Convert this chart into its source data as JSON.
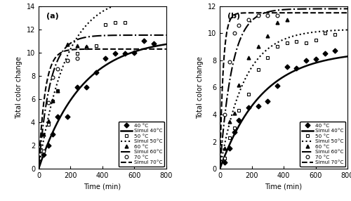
{
  "panel_a": {
    "title": "(a)",
    "ylabel": "Total color change",
    "xlabel": "Time (min)",
    "xlim": [
      0,
      800
    ],
    "ylim": [
      0,
      14
    ],
    "yticks": [
      0,
      2,
      4,
      6,
      8,
      10,
      12,
      14
    ],
    "xticks": [
      0,
      200,
      400,
      600,
      800
    ],
    "data_40": {
      "x": [
        30,
        60,
        90,
        120,
        180,
        240,
        300,
        360,
        420,
        480,
        540,
        600,
        660,
        720
      ],
      "y": [
        1.2,
        2.0,
        3.0,
        4.5,
        4.5,
        7.0,
        7.0,
        8.3,
        9.5,
        9.9,
        9.9,
        10.0,
        11.0,
        10.8
      ]
    },
    "data_50": {
      "x": [
        60,
        90,
        120,
        180,
        240,
        300,
        360,
        420,
        480,
        540
      ],
      "y": [
        3.8,
        5.8,
        6.7,
        9.3,
        9.9,
        10.4,
        10.6,
        12.4,
        12.6,
        12.6
      ]
    },
    "data_60": {
      "x": [
        30,
        60,
        90,
        120,
        180,
        240,
        300
      ],
      "y": [
        3.0,
        4.1,
        5.9,
        6.7,
        10.7,
        10.6,
        10.5
      ]
    },
    "data_70": {
      "x": [
        30,
        60,
        90,
        120,
        180,
        240
      ],
      "y": [
        1.5,
        5.7,
        7.9,
        8.6,
        9.3,
        9.5
      ]
    },
    "simul_40": {
      "a": 11.3,
      "b": 0.0037
    },
    "simul_50": {
      "a": 15.0,
      "b": 0.0058
    },
    "simul_60": {
      "a": 11.5,
      "b": 0.014
    },
    "simul_70": {
      "a": 10.3,
      "b": 0.025
    }
  },
  "panel_b": {
    "title": "(b)",
    "ylabel": "Total color change",
    "xlabel": "Time (min)",
    "xlim": [
      0,
      800
    ],
    "ylim": [
      0,
      12
    ],
    "yticks": [
      0,
      2,
      4,
      6,
      8,
      10,
      12
    ],
    "xticks": [
      0,
      200,
      400,
      600,
      800
    ],
    "data_40": {
      "x": [
        30,
        60,
        90,
        120,
        180,
        240,
        300,
        360,
        420,
        480,
        540,
        600,
        660,
        720
      ],
      "y": [
        0.5,
        1.5,
        2.7,
        3.6,
        4.5,
        4.6,
        5.0,
        6.1,
        7.5,
        7.4,
        8.0,
        8.1,
        8.5,
        8.7
      ]
    },
    "data_50": {
      "x": [
        30,
        60,
        90,
        120,
        180,
        240,
        300,
        360,
        420,
        480,
        540,
        600,
        660,
        720
      ],
      "y": [
        0.8,
        2.3,
        3.0,
        4.3,
        5.5,
        7.3,
        8.2,
        9.0,
        9.3,
        9.4,
        9.3,
        9.5,
        10.0,
        9.9
      ]
    },
    "data_60": {
      "x": [
        30,
        60,
        90,
        120,
        180,
        240,
        300,
        360,
        420
      ],
      "y": [
        1.5,
        3.5,
        4.1,
        6.2,
        8.2,
        9.0,
        9.8,
        10.8,
        11.0
      ]
    },
    "data_70": {
      "x": [
        30,
        60,
        90,
        120,
        180,
        240,
        300,
        360
      ],
      "y": [
        4.0,
        7.9,
        10.0,
        10.6,
        11.0,
        11.3,
        11.3,
        11.3
      ]
    },
    "simul_40": {
      "a": 8.7,
      "b": 0.0038
    },
    "simul_50": {
      "a": 10.3,
      "b": 0.0065
    },
    "simul_60": {
      "a": 11.8,
      "b": 0.013
    },
    "simul_70": {
      "a": 11.5,
      "b": 0.048
    }
  },
  "legend_labels": [
    "40 °C",
    "Simul 40°C",
    "50 °C",
    "Simul 50°C",
    "60 °C",
    "Simul 60°C",
    "70 °C",
    "Simul 70°C"
  ],
  "marker_40": "D",
  "marker_50": "s",
  "marker_60": "^",
  "marker_70": "o",
  "ms": 3.5,
  "fontsize": 7
}
